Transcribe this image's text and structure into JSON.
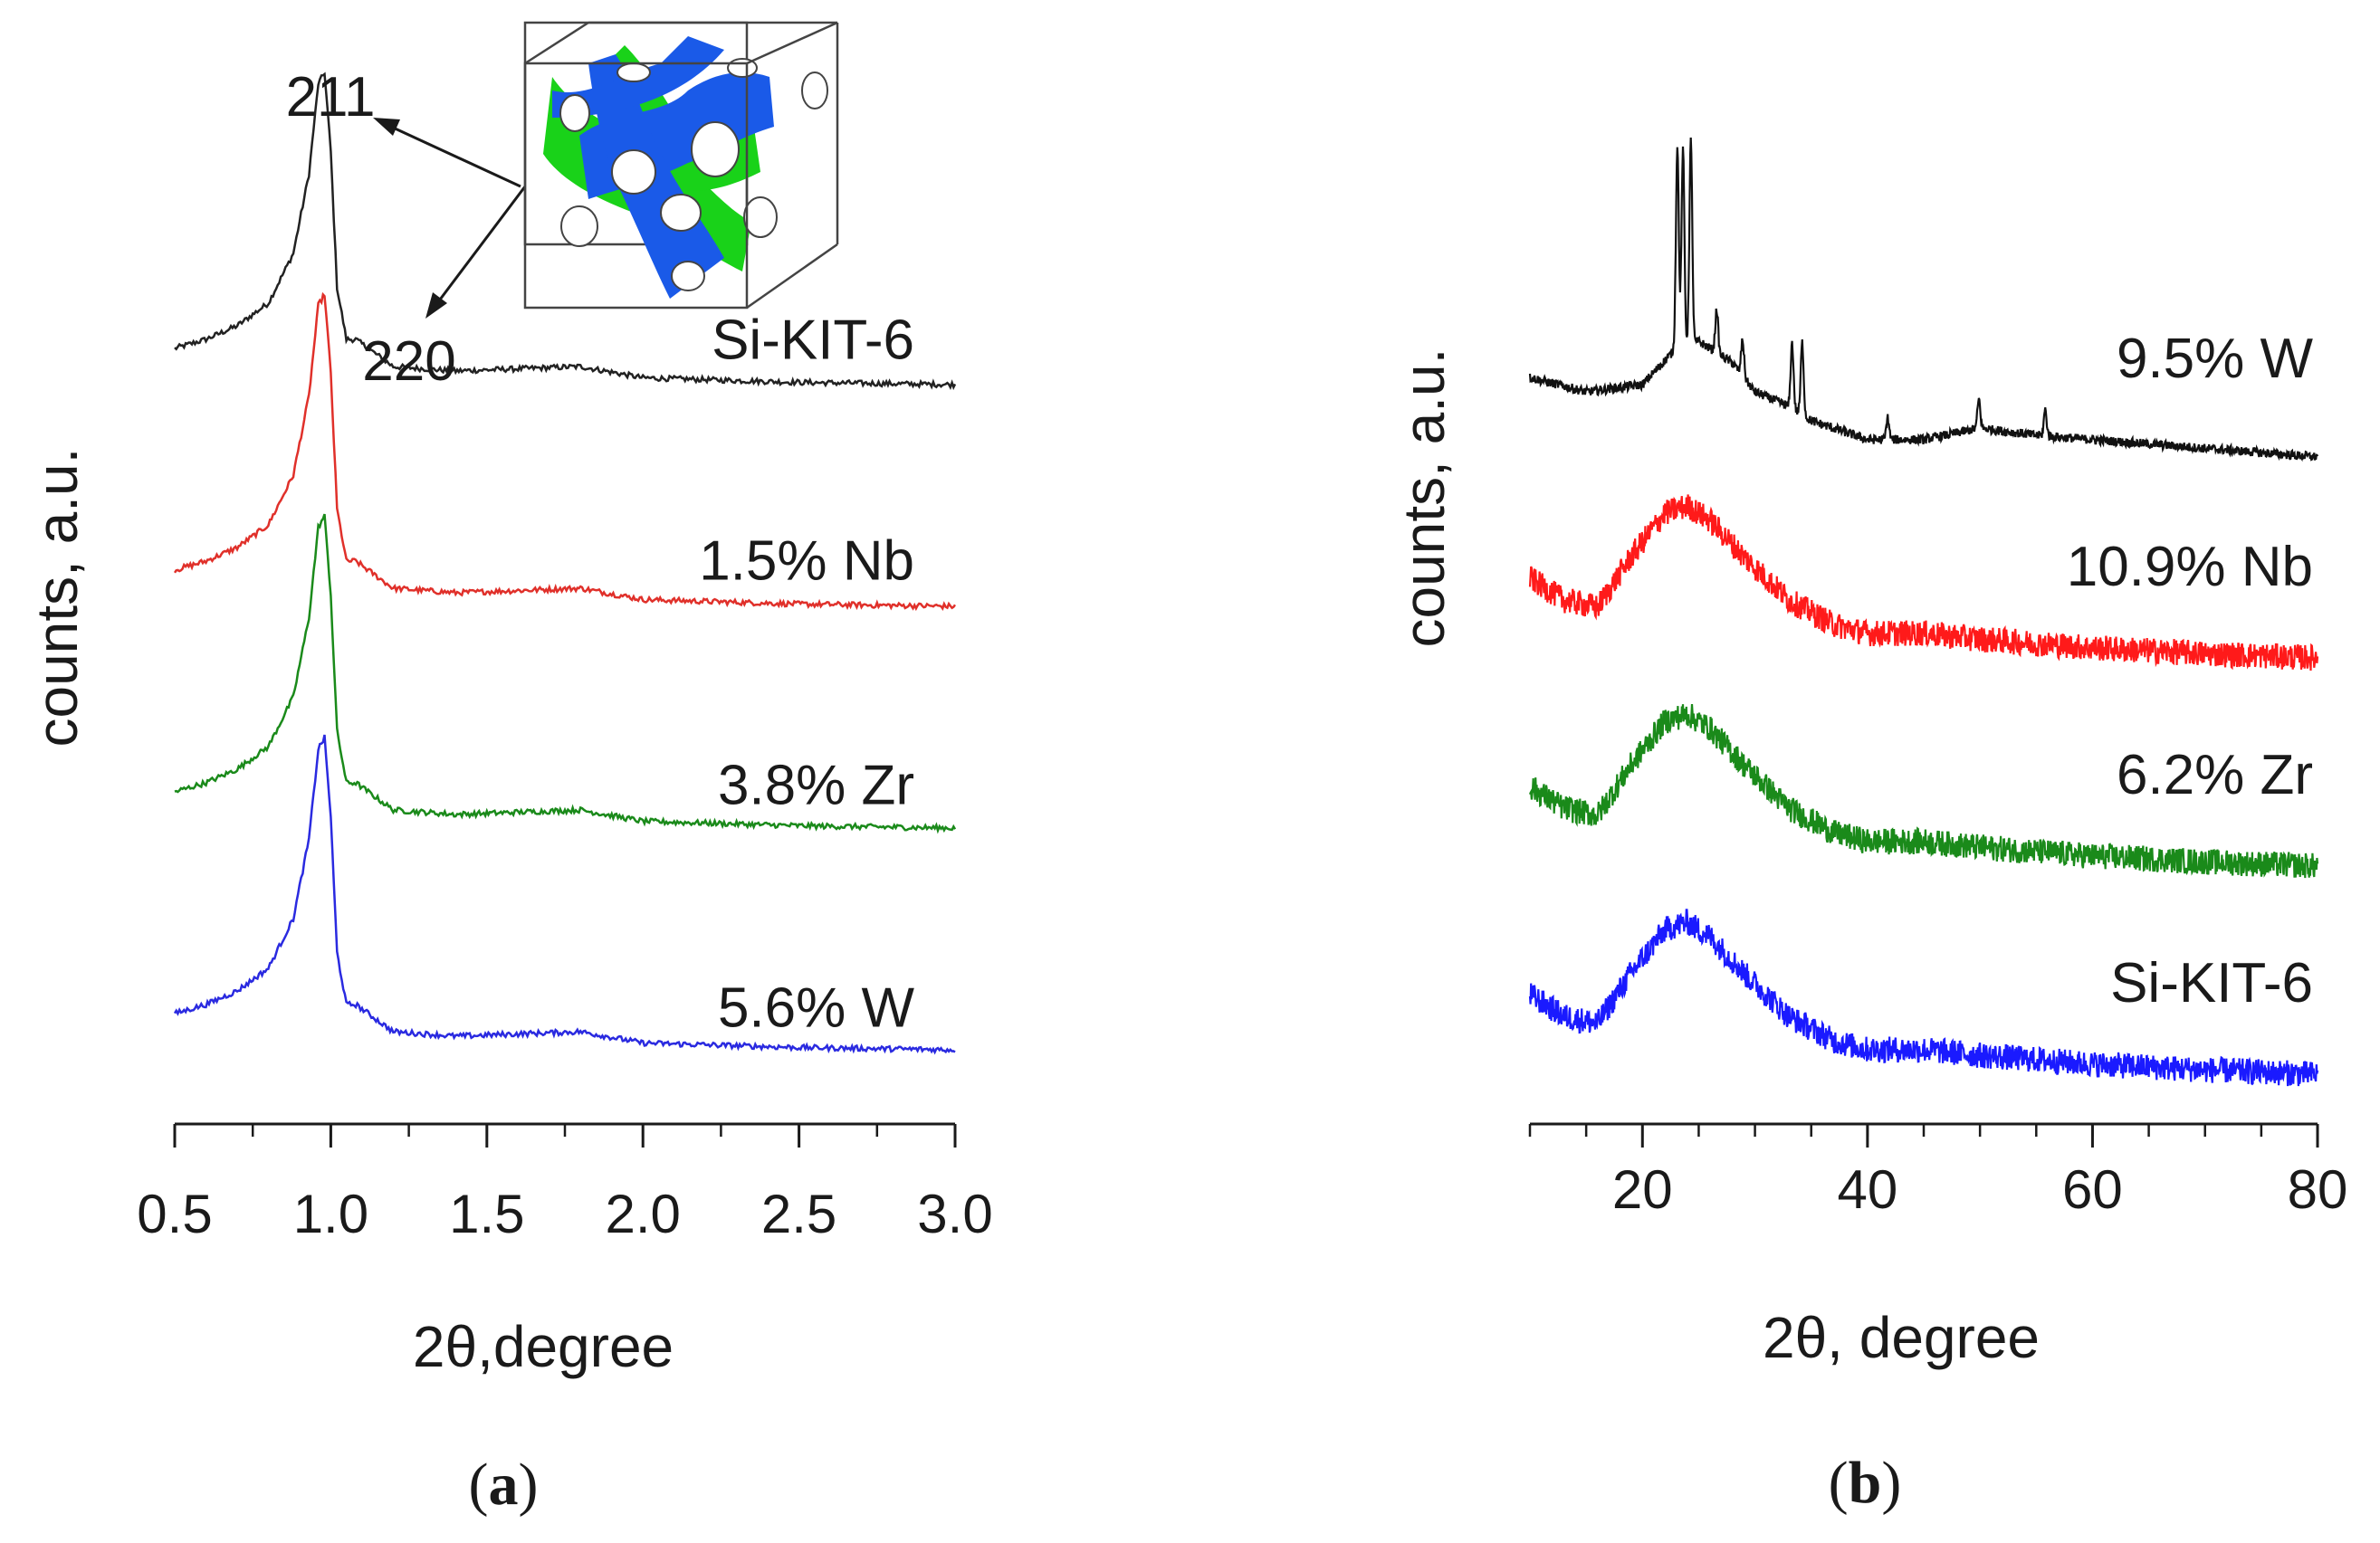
{
  "chart_data": [
    {
      "panel": "a",
      "type": "line",
      "caption": "a",
      "xlabel": "2θ,degree",
      "ylabel": "counts,  a.u.",
      "xlim": [
        0.5,
        3.0
      ],
      "xticks": [
        "0.5",
        "1.0",
        "1.5",
        "2.0",
        "2.5",
        "3.0"
      ],
      "xtick_values": [
        0.5,
        1.0,
        1.5,
        2.0,
        2.5,
        3.0
      ],
      "minor_step": 0.25,
      "annotations": [
        "211",
        "220"
      ],
      "inset": "cubic mesostructure schematic (gyroid channels)",
      "series": [
        {
          "name": "Si-KIT-6",
          "color": "#222222",
          "offset": 3,
          "x": [
            0.5,
            0.6,
            0.7,
            0.8,
            0.88,
            0.93,
            0.96,
            0.98,
            1.0,
            1.02,
            1.05,
            1.08,
            1.12,
            1.2,
            1.4,
            1.8,
            2.0,
            2.5,
            3.0
          ],
          "values": [
            0.18,
            0.22,
            0.28,
            0.38,
            0.6,
            0.95,
            1.35,
            1.4,
            1.05,
            0.45,
            0.22,
            0.22,
            0.18,
            0.1,
            0.08,
            0.1,
            0.05,
            0.03,
            0.02
          ]
        },
        {
          "name": "1.5% Nb",
          "color": "#e0302a",
          "offset": 2,
          "x": [
            0.5,
            0.6,
            0.7,
            0.8,
            0.88,
            0.93,
            0.96,
            0.98,
            1.0,
            1.02,
            1.05,
            1.08,
            1.12,
            1.2,
            1.4,
            1.8,
            2.0,
            2.5,
            3.0
          ],
          "values": [
            0.18,
            0.22,
            0.28,
            0.38,
            0.6,
            0.95,
            1.35,
            1.4,
            1.05,
            0.45,
            0.22,
            0.22,
            0.18,
            0.1,
            0.08,
            0.1,
            0.05,
            0.03,
            0.02
          ]
        },
        {
          "name": "3.8% Zr",
          "color": "#1a8a1a",
          "offset": 1,
          "x": [
            0.5,
            0.6,
            0.7,
            0.8,
            0.88,
            0.93,
            0.96,
            0.98,
            1.0,
            1.02,
            1.05,
            1.08,
            1.12,
            1.2,
            1.4,
            1.8,
            2.0,
            2.5,
            3.0
          ],
          "values": [
            0.18,
            0.22,
            0.28,
            0.38,
            0.6,
            0.95,
            1.35,
            1.4,
            1.05,
            0.45,
            0.22,
            0.22,
            0.18,
            0.1,
            0.08,
            0.1,
            0.05,
            0.03,
            0.02
          ]
        },
        {
          "name": "5.6% W",
          "color": "#2a2ae0",
          "offset": 0,
          "x": [
            0.5,
            0.6,
            0.7,
            0.8,
            0.88,
            0.93,
            0.96,
            0.98,
            1.0,
            1.02,
            1.05,
            1.08,
            1.12,
            1.2,
            1.4,
            1.8,
            2.0,
            2.5,
            3.0
          ],
          "values": [
            0.18,
            0.22,
            0.28,
            0.38,
            0.6,
            0.95,
            1.35,
            1.4,
            1.05,
            0.45,
            0.22,
            0.22,
            0.18,
            0.1,
            0.08,
            0.1,
            0.05,
            0.03,
            0.02
          ]
        }
      ]
    },
    {
      "panel": "b",
      "type": "line",
      "caption": "b",
      "xlabel": "2θ, degree",
      "ylabel": "counts,  a.u.",
      "xlim": [
        10,
        80
      ],
      "xticks": [
        "20",
        "40",
        "60",
        "80"
      ],
      "xtick_values": [
        20,
        40,
        60,
        80
      ],
      "minor_step": 5,
      "series": [
        {
          "name": "9.5% W",
          "color": "#111111",
          "offset": 3,
          "x": [
            10,
            15,
            20,
            23,
            25,
            28,
            30,
            33,
            35,
            40,
            45,
            50,
            55,
            60,
            70,
            80
          ],
          "values": [
            0.55,
            0.45,
            0.5,
            0.75,
            0.8,
            0.65,
            0.45,
            0.35,
            0.25,
            0.12,
            0.12,
            0.2,
            0.15,
            0.12,
            0.06,
            0.0
          ]
        },
        {
          "name": "10.9% Nb",
          "color": "#ff1a1a",
          "offset": 2,
          "x": [
            10,
            13,
            16,
            19,
            22,
            24,
            26,
            29,
            33,
            37,
            40,
            45,
            50,
            60,
            70,
            80
          ],
          "values": [
            0.6,
            0.45,
            0.4,
            0.75,
            1.05,
            1.1,
            1.0,
            0.75,
            0.45,
            0.28,
            0.22,
            0.22,
            0.18,
            0.12,
            0.08,
            0.05
          ]
        },
        {
          "name": "6.2% Zr",
          "color": "#1a8a1a",
          "offset": 1,
          "x": [
            10,
            13,
            16,
            19,
            22,
            24,
            26,
            29,
            33,
            37,
            40,
            45,
            50,
            60,
            70,
            80
          ],
          "values": [
            0.6,
            0.45,
            0.4,
            0.75,
            1.05,
            1.1,
            1.0,
            0.75,
            0.45,
            0.28,
            0.22,
            0.22,
            0.18,
            0.12,
            0.08,
            0.05
          ]
        },
        {
          "name": "Si-KIT-6",
          "color": "#1a1aff",
          "offset": 0,
          "x": [
            10,
            13,
            16,
            19,
            22,
            24,
            26,
            29,
            33,
            37,
            40,
            45,
            50,
            60,
            70,
            80
          ],
          "values": [
            0.6,
            0.45,
            0.4,
            0.75,
            1.05,
            1.1,
            1.0,
            0.75,
            0.45,
            0.28,
            0.22,
            0.22,
            0.18,
            0.12,
            0.08,
            0.05
          ]
        }
      ],
      "sharp_peaks_series": "9.5% W",
      "sharp_peaks": [
        {
          "x": 23.1,
          "h": 1.4
        },
        {
          "x": 23.6,
          "h": 1.35
        },
        {
          "x": 24.3,
          "h": 1.4
        },
        {
          "x": 26.6,
          "h": 0.3
        },
        {
          "x": 28.9,
          "h": 0.25
        },
        {
          "x": 33.3,
          "h": 0.45
        },
        {
          "x": 34.2,
          "h": 0.5
        },
        {
          "x": 41.8,
          "h": 0.15
        },
        {
          "x": 49.9,
          "h": 0.2
        },
        {
          "x": 55.8,
          "h": 0.18
        }
      ]
    }
  ]
}
